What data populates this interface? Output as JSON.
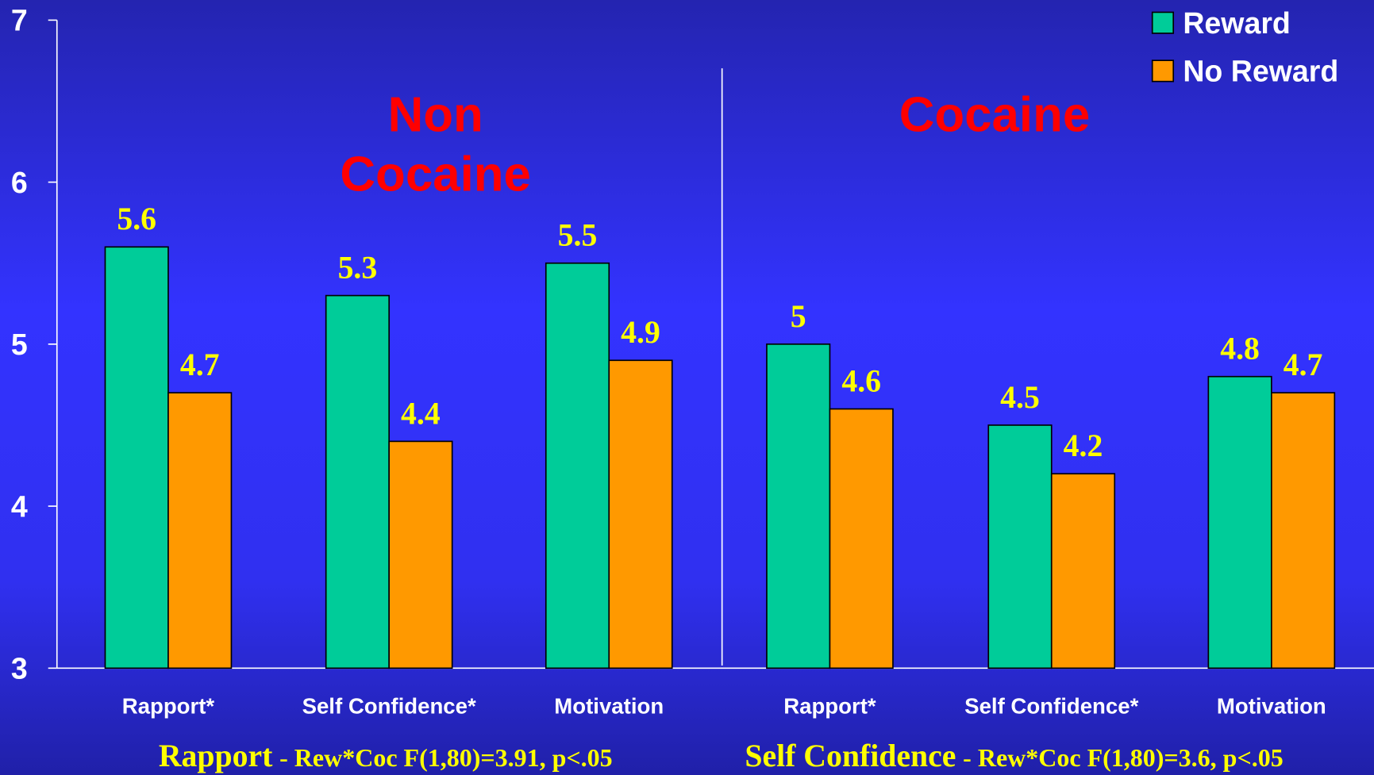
{
  "chart_data": {
    "type": "bar",
    "categories": [
      "Rapport*",
      "Self Confidence*",
      "Motivation",
      "Rapport*",
      "Self Confidence*",
      "Motivation"
    ],
    "series": [
      {
        "name": "Reward",
        "color": "#00cc99",
        "values": [
          5.6,
          5.3,
          5.5,
          5,
          4.5,
          4.8
        ]
      },
      {
        "name": "No Reward",
        "color": "#ff9900",
        "values": [
          4.7,
          4.4,
          4.9,
          4.6,
          4.2,
          4.7
        ]
      }
    ],
    "ylim": [
      3,
      7
    ],
    "yticks": [
      3,
      4,
      5,
      6,
      7
    ],
    "legend": "top-right",
    "group_labels": [
      [
        "Non",
        "Cocaine"
      ],
      [
        "Cocaine"
      ]
    ],
    "footnotes": [
      {
        "label": "Rapport",
        "text": "- Rew*Coc  F(1,80)=3.91, p<.05"
      },
      {
        "label": "Self Confidence",
        "text": "- Rew*Coc F(1,80)=3.6, p<.05"
      }
    ]
  }
}
